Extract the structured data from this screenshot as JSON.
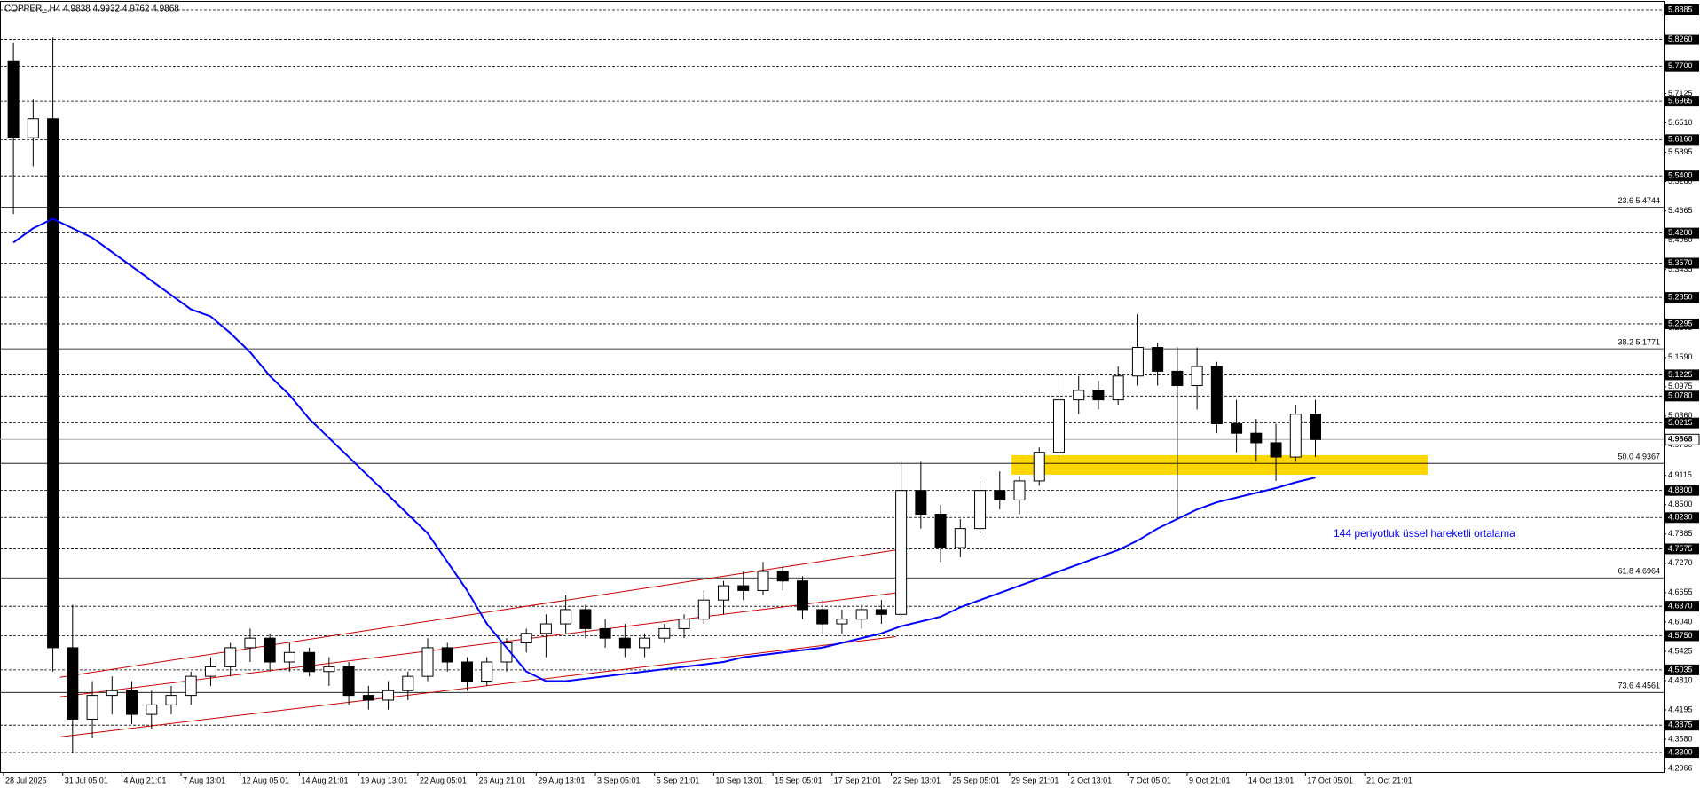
{
  "chart_data": {
    "type": "candlestick",
    "title": "COPPER_,H4 4.9838 4.9932 4.9762 4.9868",
    "x_labels": [
      "28 Jul 2025",
      "31 Jul 05:01",
      "4 Aug 21:01",
      "7 Aug 13:01",
      "12 Aug 05:01",
      "14 Aug 21:01",
      "19 Aug 13:01",
      "22 Aug 05:01",
      "26 Aug 21:01",
      "29 Aug 13:01",
      "3 Sep 05:01",
      "5 Sep 21:01",
      "10 Sep 13:01",
      "15 Sep 05:01",
      "17 Sep 21:01",
      "22 Sep 13:01",
      "25 Sep 05:01",
      "29 Sep 21:01",
      "2 Oct 13:01",
      "7 Oct 05:01",
      "9 Oct 21:01",
      "14 Oct 13:01",
      "17 Oct 05:01",
      "21 Oct 21:01"
    ],
    "candles": {
      "open": [
        5.78,
        5.62,
        5.66,
        4.55,
        4.4,
        4.45,
        4.46,
        4.41,
        4.43,
        4.45,
        4.49,
        4.51,
        4.55,
        4.57,
        4.52,
        4.54,
        4.5,
        4.51,
        4.45,
        4.44,
        4.46,
        4.49,
        4.55,
        4.52,
        4.48,
        4.52,
        4.56,
        4.58,
        4.6,
        4.63,
        4.59,
        4.57,
        4.55,
        4.57,
        4.59,
        4.61,
        4.65,
        4.68,
        4.67,
        4.71,
        4.69,
        4.63,
        4.6,
        4.61,
        4.63,
        4.62,
        4.88,
        4.83,
        4.76,
        4.8,
        4.88,
        4.86,
        4.9,
        4.96,
        5.07,
        5.09,
        5.07,
        5.12,
        5.18,
        5.13,
        5.1,
        5.14,
        5.02,
        5.0,
        4.98,
        4.95,
        5.04
      ],
      "high": [
        5.82,
        5.7,
        5.83,
        4.64,
        4.48,
        4.49,
        4.48,
        4.46,
        4.47,
        4.5,
        4.53,
        4.56,
        4.59,
        4.58,
        4.56,
        4.55,
        4.53,
        4.52,
        4.47,
        4.48,
        4.5,
        4.57,
        4.56,
        4.53,
        4.53,
        4.57,
        4.59,
        4.62,
        4.66,
        4.64,
        4.61,
        4.6,
        4.58,
        4.6,
        4.62,
        4.67,
        4.69,
        4.71,
        4.73,
        4.72,
        4.7,
        4.65,
        4.63,
        4.64,
        4.65,
        4.94,
        4.94,
        4.85,
        4.82,
        4.9,
        4.92,
        4.91,
        4.97,
        5.12,
        5.12,
        5.11,
        5.14,
        5.25,
        5.19,
        5.18,
        5.18,
        5.15,
        5.07,
        5.03,
        5.02,
        5.06,
        5.07
      ],
      "low": [
        5.46,
        5.56,
        4.5,
        4.33,
        4.36,
        4.41,
        4.39,
        4.38,
        4.41,
        4.43,
        4.47,
        4.49,
        4.52,
        4.5,
        4.5,
        4.49,
        4.47,
        4.43,
        4.42,
        4.42,
        4.44,
        4.48,
        4.5,
        4.46,
        4.47,
        4.5,
        4.54,
        4.53,
        4.58,
        4.57,
        4.55,
        4.53,
        4.53,
        4.56,
        4.57,
        4.6,
        4.62,
        4.65,
        4.66,
        4.67,
        4.61,
        4.58,
        4.58,
        4.59,
        4.6,
        4.61,
        4.8,
        4.73,
        4.74,
        4.79,
        4.84,
        4.83,
        4.89,
        4.95,
        5.04,
        5.05,
        5.06,
        5.1,
        5.1,
        4.82,
        5.05,
        5.0,
        4.96,
        4.94,
        4.9,
        4.94,
        4.95
      ],
      "close": [
        5.62,
        5.66,
        4.55,
        4.4,
        4.45,
        4.46,
        4.41,
        4.43,
        4.45,
        4.49,
        4.51,
        4.55,
        4.57,
        4.52,
        4.54,
        4.5,
        4.51,
        4.45,
        4.44,
        4.46,
        4.49,
        4.55,
        4.52,
        4.48,
        4.52,
        4.56,
        4.58,
        4.6,
        4.63,
        4.59,
        4.57,
        4.55,
        4.57,
        4.59,
        4.61,
        4.65,
        4.68,
        4.67,
        4.71,
        4.69,
        4.63,
        4.6,
        4.61,
        4.63,
        4.62,
        4.88,
        4.83,
        4.76,
        4.8,
        4.88,
        4.86,
        4.9,
        4.96,
        5.07,
        5.09,
        5.07,
        5.12,
        5.18,
        5.13,
        5.1,
        5.14,
        5.02,
        5.0,
        4.98,
        4.95,
        5.04,
        4.9868
      ]
    },
    "ema": {
      "color": "#0000ff",
      "values": [
        5.4,
        5.43,
        5.45,
        5.43,
        5.41,
        5.38,
        5.35,
        5.32,
        5.29,
        5.26,
        5.245,
        5.21,
        5.17,
        5.12,
        5.08,
        5.03,
        4.99,
        4.95,
        4.91,
        4.87,
        4.83,
        4.79,
        4.73,
        4.67,
        4.6,
        4.55,
        4.5,
        4.48,
        4.48,
        4.485,
        4.49,
        4.495,
        4.5,
        4.505,
        4.51,
        4.515,
        4.52,
        4.53,
        4.535,
        4.54,
        4.545,
        4.55,
        4.56,
        4.57,
        4.58,
        4.595,
        4.605,
        4.615,
        4.635,
        4.65,
        4.665,
        4.68,
        4.695,
        4.71,
        4.725,
        4.74,
        4.755,
        4.775,
        4.8,
        4.82,
        4.84,
        4.855,
        4.865,
        4.875,
        4.885,
        4.897,
        4.907
      ]
    },
    "annotation": "144 periyotluk üssel hareketli ortalama",
    "ylim": [
      4.2966,
      5.8885
    ],
    "yticks": [
      {
        "value": 5.7125,
        "label": "5.7125"
      },
      {
        "value": 5.651,
        "label": "5.6510"
      },
      {
        "value": 5.5895,
        "label": "5.5895"
      },
      {
        "value": 5.528,
        "label": "5.5280"
      },
      {
        "value": 5.4665,
        "label": "5.4665"
      },
      {
        "value": 5.405,
        "label": "5.4050"
      },
      {
        "value": 5.3435,
        "label": "5.3435"
      },
      {
        "value": 5.282,
        "label": "5.2820"
      },
      {
        "value": 5.2205,
        "label": "5.2205"
      },
      {
        "value": 5.159,
        "label": "5.1590"
      },
      {
        "value": 5.0975,
        "label": "5.0975"
      },
      {
        "value": 5.036,
        "label": "5.0360"
      },
      {
        "value": 4.975,
        "label": "4.9750"
      },
      {
        "value": 4.9115,
        "label": "4.9115"
      },
      {
        "value": 4.85,
        "label": "4.8500"
      },
      {
        "value": 4.7885,
        "label": "4.7885"
      },
      {
        "value": 4.727,
        "label": "4.7270"
      },
      {
        "value": 4.6655,
        "label": "4.6655"
      },
      {
        "value": 4.604,
        "label": "4.6040"
      },
      {
        "value": 4.5425,
        "label": "4.5425"
      },
      {
        "value": 4.481,
        "label": "4.4810"
      },
      {
        "value": 4.4195,
        "label": "4.4195"
      },
      {
        "value": 4.358,
        "label": "4.3580"
      },
      {
        "value": 4.2966,
        "label": "4.2966"
      }
    ],
    "levels": [
      {
        "value": 5.8885,
        "label": "5.8885"
      },
      {
        "value": 5.826,
        "label": "5.8260"
      },
      {
        "value": 5.77,
        "label": "5.7700"
      },
      {
        "value": 5.6965,
        "label": "5.6965"
      },
      {
        "value": 5.616,
        "label": "5.6160"
      },
      {
        "value": 5.54,
        "label": "5.5400"
      },
      {
        "value": 5.42,
        "label": "5.4200"
      },
      {
        "value": 5.357,
        "label": "5.3570"
      },
      {
        "value": 5.285,
        "label": "5.2850"
      },
      {
        "value": 5.2295,
        "label": "5.2295"
      },
      {
        "value": 5.1225,
        "label": "5.1225"
      },
      {
        "value": 5.078,
        "label": "5.0780"
      },
      {
        "value": 5.0215,
        "label": "5.0215"
      },
      {
        "value": 4.88,
        "label": "4.8800"
      },
      {
        "value": 4.823,
        "label": "4.8230"
      },
      {
        "value": 4.7575,
        "label": "4.7575"
      },
      {
        "value": 4.637,
        "label": "4.6370"
      },
      {
        "value": 4.575,
        "label": "4.5750"
      },
      {
        "value": 4.5035,
        "label": "4.5035"
      },
      {
        "value": 4.3875,
        "label": "4.3875"
      },
      {
        "value": 4.33,
        "label": "4.3300"
      }
    ],
    "fib_levels": [
      {
        "value": 5.4744,
        "label": "23.6 5.4744"
      },
      {
        "value": 5.1771,
        "label": "38.2 5.1771"
      },
      {
        "value": 4.9367,
        "label": "50.0 4.9367"
      },
      {
        "value": 4.6964,
        "label": "61.8 4.6964"
      },
      {
        "value": 4.4561,
        "label": "73.6 4.4561"
      }
    ],
    "current_price": {
      "value": 4.9868,
      "label": "4.9868"
    },
    "channel_color": "#cc0000",
    "channels": [
      {
        "x": [
          2.36,
          44.74
        ],
        "y": [
          4.488,
          4.755
        ]
      },
      {
        "x": [
          2.36,
          44.74
        ],
        "y": [
          4.447,
          4.665
        ]
      },
      {
        "x": [
          2.36,
          44.74
        ],
        "y": [
          4.363,
          4.573
        ]
      }
    ],
    "zone": {
      "x": [
        50.6,
        71.7
      ],
      "y": [
        4.913,
        4.954
      ],
      "color": "#ffd700"
    }
  }
}
